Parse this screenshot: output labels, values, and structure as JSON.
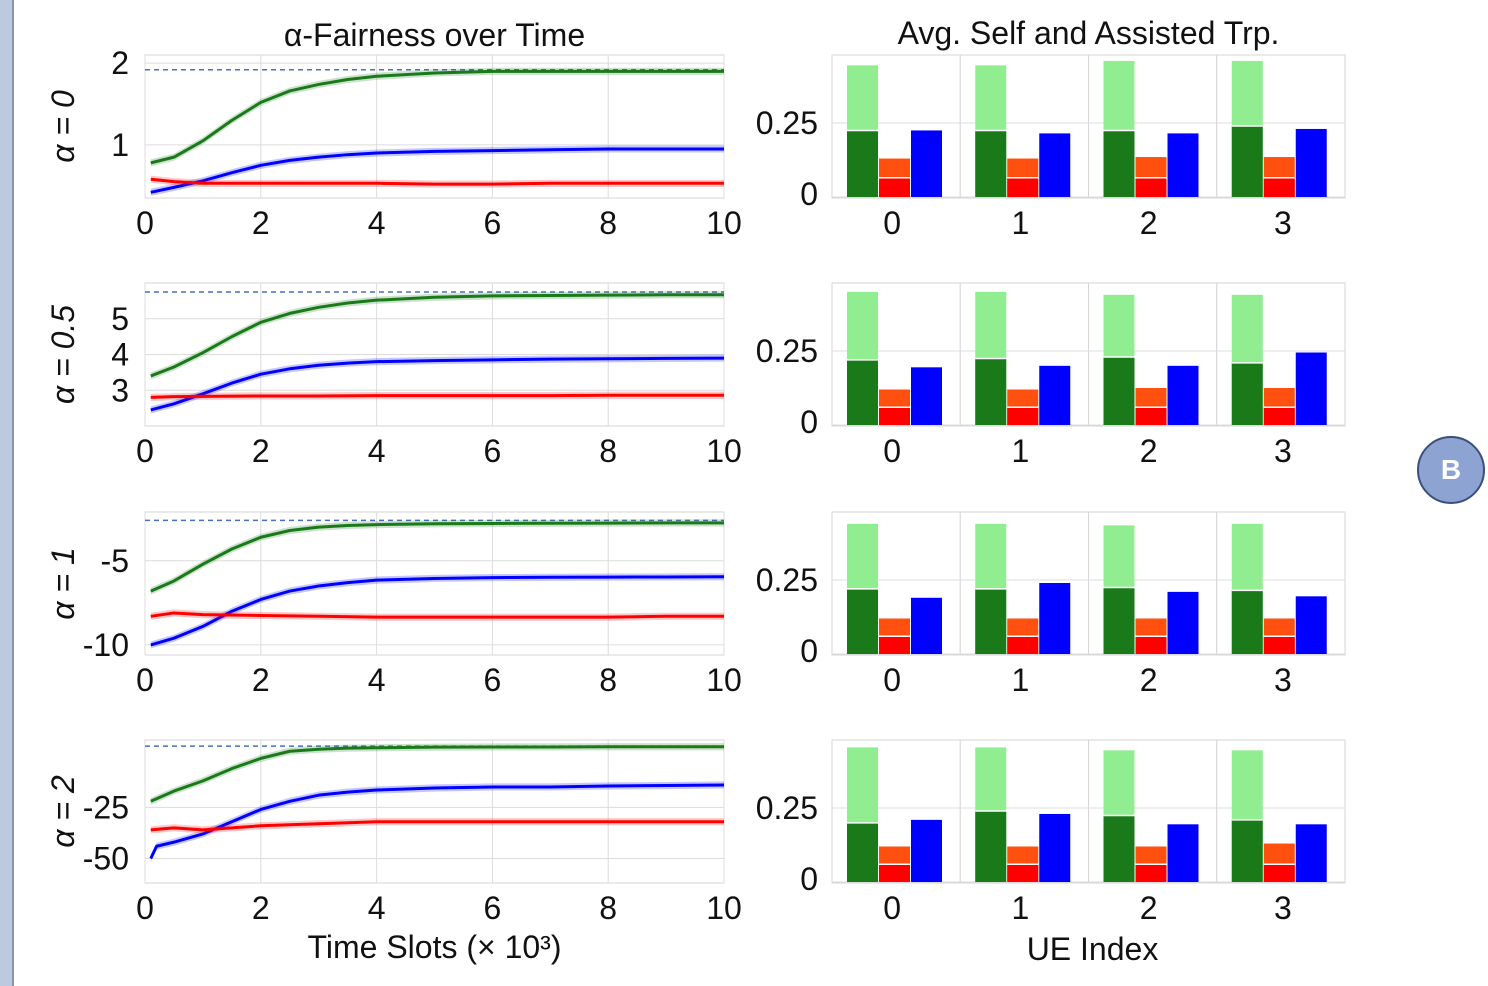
{
  "badge": {
    "label": "B"
  },
  "chart_data": {
    "type": "line+bar",
    "colors": {
      "green": "#1a7a1a",
      "green_light": "#90ee90",
      "orange": "#ff5010",
      "red": "#ff0000",
      "blue": "#0000ff",
      "ref_line": "#4a6fc0"
    },
    "line_panels": {
      "title": "α-Fairness over Time",
      "xlabel": "Time Slots (× 10³)",
      "x_ticks": [
        "0",
        "2",
        "4",
        "6",
        "8",
        "10"
      ],
      "xlim": [
        0,
        10
      ],
      "rows": [
        {
          "row_label": "α = 0",
          "ylim": [
            0.35,
            2.1
          ],
          "y_ticks": [
            {
              "v": 2,
              "t": "2"
            },
            {
              "v": 1,
              "t": "1"
            }
          ],
          "ref": 1.92,
          "series": [
            {
              "color": "green",
              "x": [
                0.1,
                0.5,
                1,
                1.5,
                2,
                2.5,
                3,
                3.5,
                4,
                5,
                6,
                7,
                8,
                9,
                10
              ],
              "y": [
                0.78,
                0.85,
                1.05,
                1.3,
                1.52,
                1.66,
                1.74,
                1.8,
                1.84,
                1.88,
                1.9,
                1.9,
                1.9,
                1.9,
                1.9
              ]
            },
            {
              "color": "blue",
              "x": [
                0.1,
                0.5,
                1,
                1.5,
                2,
                2.5,
                3,
                3.5,
                4,
                5,
                6,
                7,
                8,
                9,
                10
              ],
              "y": [
                0.42,
                0.48,
                0.56,
                0.66,
                0.75,
                0.81,
                0.85,
                0.88,
                0.9,
                0.92,
                0.93,
                0.94,
                0.95,
                0.95,
                0.95
              ]
            },
            {
              "color": "red",
              "x": [
                0.1,
                0.5,
                1,
                2,
                3,
                4,
                5,
                6,
                7,
                8,
                9,
                10
              ],
              "y": [
                0.58,
                0.55,
                0.53,
                0.53,
                0.53,
                0.53,
                0.52,
                0.52,
                0.53,
                0.53,
                0.53,
                0.53
              ]
            }
          ]
        },
        {
          "row_label": "α = 0.5",
          "ylim": [
            2.0,
            6.0
          ],
          "y_ticks": [
            {
              "v": 5,
              "t": "5"
            },
            {
              "v": 4,
              "t": "4"
            },
            {
              "v": 3,
              "t": "3"
            }
          ],
          "ref": 5.75,
          "series": [
            {
              "color": "green",
              "x": [
                0.1,
                0.5,
                1,
                1.5,
                2,
                2.5,
                3,
                3.5,
                4,
                5,
                6,
                7,
                8,
                9,
                10
              ],
              "y": [
                3.4,
                3.65,
                4.05,
                4.5,
                4.9,
                5.15,
                5.32,
                5.44,
                5.52,
                5.6,
                5.64,
                5.65,
                5.66,
                5.67,
                5.67
              ]
            },
            {
              "color": "blue",
              "x": [
                0.1,
                0.5,
                1,
                1.5,
                2,
                2.5,
                3,
                3.5,
                4,
                5,
                6,
                7,
                8,
                9,
                10
              ],
              "y": [
                2.45,
                2.62,
                2.9,
                3.2,
                3.45,
                3.6,
                3.7,
                3.76,
                3.8,
                3.83,
                3.85,
                3.87,
                3.88,
                3.89,
                3.9
              ]
            },
            {
              "color": "red",
              "x": [
                0.1,
                0.5,
                1,
                2,
                3,
                4,
                5,
                6,
                7,
                8,
                9,
                10
              ],
              "y": [
                2.8,
                2.82,
                2.83,
                2.84,
                2.84,
                2.85,
                2.85,
                2.85,
                2.85,
                2.86,
                2.86,
                2.86
              ]
            }
          ]
        },
        {
          "row_label": "α = 1",
          "ylim": [
            -10.6,
            -2.1
          ],
          "y_ticks": [
            {
              "v": -5,
              "t": "-5"
            },
            {
              "v": -10,
              "t": "-10"
            }
          ],
          "ref": -2.6,
          "series": [
            {
              "color": "green",
              "x": [
                0.1,
                0.5,
                1,
                1.5,
                2,
                2.5,
                3,
                3.5,
                4,
                5,
                6,
                7,
                8,
                9,
                10
              ],
              "y": [
                -6.8,
                -6.2,
                -5.2,
                -4.3,
                -3.6,
                -3.2,
                -3.0,
                -2.9,
                -2.85,
                -2.8,
                -2.78,
                -2.77,
                -2.76,
                -2.75,
                -2.75
              ]
            },
            {
              "color": "blue",
              "x": [
                0.1,
                0.5,
                1,
                1.5,
                2,
                2.5,
                3,
                3.5,
                4,
                5,
                6,
                7,
                8,
                9,
                10
              ],
              "y": [
                -10.0,
                -9.6,
                -8.9,
                -8.0,
                -7.3,
                -6.8,
                -6.5,
                -6.3,
                -6.15,
                -6.05,
                -6.0,
                -5.98,
                -5.97,
                -5.96,
                -5.95
              ]
            },
            {
              "color": "red",
              "x": [
                0.1,
                0.5,
                1,
                2,
                3,
                4,
                5,
                6,
                7,
                8,
                9,
                10
              ],
              "y": [
                -8.3,
                -8.1,
                -8.2,
                -8.25,
                -8.3,
                -8.35,
                -8.35,
                -8.35,
                -8.35,
                -8.35,
                -8.3,
                -8.3
              ]
            }
          ]
        },
        {
          "row_label": "α = 2",
          "ylim": [
            -62,
            8
          ],
          "y_ticks": [
            {
              "v": -25,
              "t": "-25"
            },
            {
              "v": -50,
              "t": "-50"
            }
          ],
          "ref": 5,
          "series": [
            {
              "color": "green",
              "x": [
                0.1,
                0.5,
                1,
                1.5,
                2,
                2.5,
                3,
                3.5,
                4,
                5,
                6,
                7,
                8,
                9,
                10
              ],
              "y": [
                -22,
                -17,
                -12,
                -6,
                -1,
                2.5,
                3.5,
                4.0,
                4.2,
                4.5,
                4.6,
                4.6,
                4.7,
                4.7,
                4.7
              ]
            },
            {
              "color": "blue",
              "x": [
                0.1,
                0.2,
                0.5,
                1,
                1.5,
                2,
                2.5,
                3,
                3.5,
                4,
                5,
                6,
                7,
                8,
                9,
                10
              ],
              "y": [
                -50,
                -44,
                -42,
                -38,
                -32,
                -26,
                -22,
                -19,
                -17.5,
                -16.5,
                -15.5,
                -15,
                -15,
                -14.5,
                -14.3,
                -14
              ]
            },
            {
              "color": "red",
              "x": [
                0.1,
                0.5,
                1,
                2,
                3,
                4,
                5,
                6,
                7,
                8,
                9,
                10
              ],
              "y": [
                -36,
                -35,
                -36,
                -34,
                -33,
                -32,
                -32,
                -32,
                -32,
                -32,
                -32,
                -32
              ]
            }
          ]
        }
      ]
    },
    "bar_panels": {
      "title": "Avg. Self and Assisted Trp.",
      "xlabel": "UE Index",
      "ylim": [
        0,
        0.48
      ],
      "y_ticks": [
        {
          "v": 0.25,
          "t": "0.25"
        },
        {
          "v": 0,
          "t": "0"
        }
      ],
      "x_labels": [
        "0",
        "1",
        "2",
        "3"
      ],
      "rows": [
        {
          "light_green": [
            0.445,
            0.445,
            0.46,
            0.46
          ],
          "green": [
            0.225,
            0.225,
            0.225,
            0.24
          ],
          "orange": [
            0.13,
            0.13,
            0.135,
            0.135
          ],
          "red": [
            0.065,
            0.065,
            0.065,
            0.065
          ],
          "blue": [
            0.225,
            0.215,
            0.215,
            0.23
          ]
        },
        {
          "light_green": [
            0.45,
            0.45,
            0.44,
            0.44
          ],
          "green": [
            0.22,
            0.225,
            0.23,
            0.21
          ],
          "orange": [
            0.12,
            0.12,
            0.125,
            0.125
          ],
          "red": [
            0.06,
            0.06,
            0.06,
            0.06
          ],
          "blue": [
            0.195,
            0.2,
            0.2,
            0.245
          ]
        },
        {
          "light_green": [
            0.44,
            0.44,
            0.435,
            0.44
          ],
          "green": [
            0.22,
            0.22,
            0.225,
            0.215
          ],
          "orange": [
            0.12,
            0.12,
            0.12,
            0.12
          ],
          "red": [
            0.06,
            0.06,
            0.06,
            0.06
          ],
          "blue": [
            0.19,
            0.24,
            0.21,
            0.195
          ]
        },
        {
          "light_green": [
            0.455,
            0.455,
            0.445,
            0.445
          ],
          "green": [
            0.2,
            0.24,
            0.225,
            0.21
          ],
          "orange": [
            0.12,
            0.12,
            0.12,
            0.13
          ],
          "red": [
            0.06,
            0.06,
            0.06,
            0.06
          ],
          "blue": [
            0.21,
            0.23,
            0.195,
            0.195
          ]
        }
      ]
    }
  }
}
